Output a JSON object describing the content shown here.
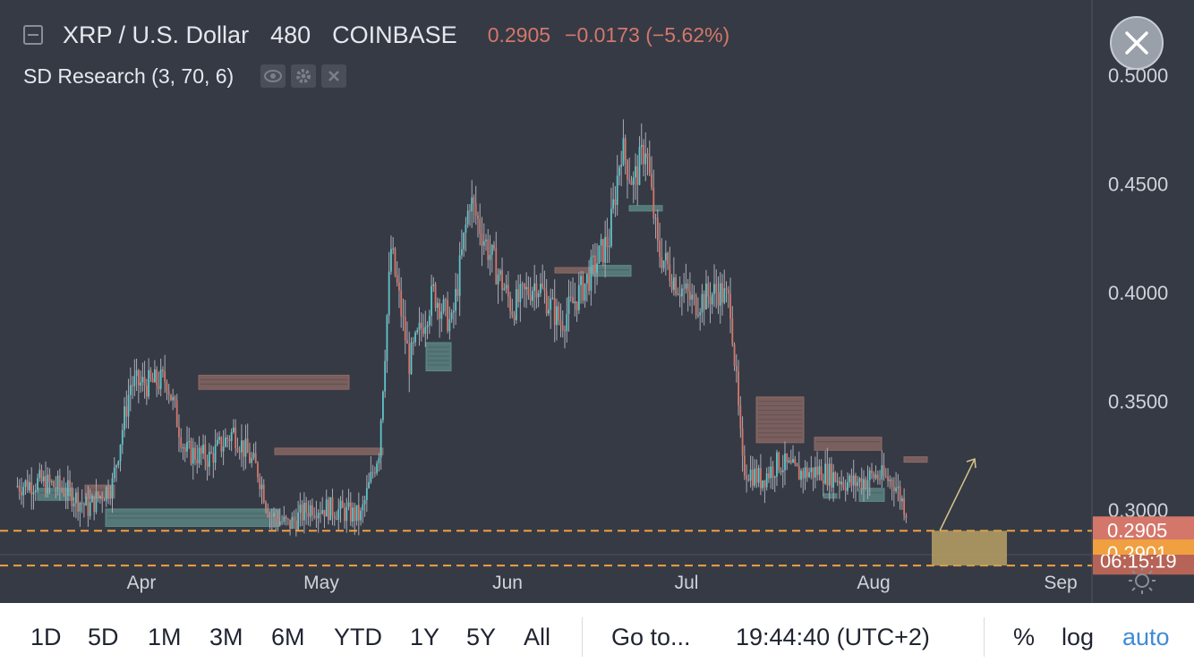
{
  "header": {
    "symbol": "XRP / U.S. Dollar",
    "interval": "480",
    "exchange": "COINBASE",
    "last_price": "0.2905",
    "change": "−0.0173 (−5.62%)",
    "indicator": "SD Research (3, 70, 6)",
    "indicator_icons": [
      "eye-icon",
      "gear-icon",
      "close-icon"
    ]
  },
  "price_axis": {
    "ticks": [
      "0.5000",
      "0.4500",
      "0.4000",
      "0.3500",
      "0.3000"
    ],
    "last_price_label": "0.2905",
    "countdown_label": "06:15:19",
    "low_label": "0.2901"
  },
  "time_axis": {
    "ticks": [
      "Apr",
      "May",
      "Jun",
      "Jul",
      "Aug",
      "Sep"
    ]
  },
  "toolbar": {
    "ranges": [
      "1D",
      "5D",
      "1M",
      "3M",
      "6M",
      "YTD",
      "1Y",
      "5Y",
      "All"
    ],
    "goto": "Go to...",
    "clock": "19:44:40 (UTC+2)",
    "percent": "%",
    "log": "log",
    "auto": "auto"
  },
  "colors": {
    "background": "#363a45",
    "up": "#5ec5c9",
    "down": "#d4776a",
    "supply_zone": "#8c6a64",
    "demand_zone": "#5d8a86",
    "price_line": "#f0a040",
    "accent_blue": "#3f8ad8",
    "target_box": "#b7a164"
  },
  "chart_data": {
    "type": "candlestick",
    "title": "XRP / U.S. Dollar",
    "interval": "480",
    "exchange": "COINBASE",
    "x_ticks": [
      "Apr",
      "May",
      "Jun",
      "Jul",
      "Aug",
      "Sep"
    ],
    "y_ticks": [
      0.5,
      0.45,
      0.4,
      0.35,
      0.3
    ],
    "ylim": [
      0.2795,
      0.5345
    ],
    "last_price": 0.2905,
    "low_marker": 0.2901,
    "series": [
      {
        "name": "close",
        "points": [
          [
            "2019-03-14",
            0.311
          ],
          [
            "2019-03-18",
            0.313
          ],
          [
            "2019-03-22",
            0.31
          ],
          [
            "2019-03-26",
            0.301
          ],
          [
            "2019-03-30",
            0.312
          ],
          [
            "2019-04-02",
            0.358
          ],
          [
            "2019-04-05",
            0.358
          ],
          [
            "2019-04-08",
            0.36
          ],
          [
            "2019-04-11",
            0.327
          ],
          [
            "2019-04-15",
            0.324
          ],
          [
            "2019-04-19",
            0.336
          ],
          [
            "2019-04-23",
            0.318
          ],
          [
            "2019-04-25",
            0.298
          ],
          [
            "2019-04-28",
            0.293
          ],
          [
            "2019-05-02",
            0.302
          ],
          [
            "2019-05-06",
            0.3
          ],
          [
            "2019-05-10",
            0.297
          ],
          [
            "2019-05-13",
            0.328
          ],
          [
            "2019-05-15",
            0.42
          ],
          [
            "2019-05-18",
            0.368
          ],
          [
            "2019-05-22",
            0.4
          ],
          [
            "2019-05-25",
            0.385
          ],
          [
            "2019-05-28",
            0.443
          ],
          [
            "2019-05-31",
            0.42
          ],
          [
            "2019-06-04",
            0.393
          ],
          [
            "2019-06-08",
            0.405
          ],
          [
            "2019-06-12",
            0.386
          ],
          [
            "2019-06-16",
            0.404
          ],
          [
            "2019-06-20",
            0.425
          ],
          [
            "2019-06-22",
            0.467
          ],
          [
            "2019-06-24",
            0.45
          ],
          [
            "2019-06-26",
            0.468
          ],
          [
            "2019-06-28",
            0.42
          ],
          [
            "2019-07-01",
            0.405
          ],
          [
            "2019-07-04",
            0.395
          ],
          [
            "2019-07-08",
            0.401
          ],
          [
            "2019-07-10",
            0.395
          ],
          [
            "2019-07-12",
            0.32
          ],
          [
            "2019-07-15",
            0.314
          ],
          [
            "2019-07-18",
            0.322
          ],
          [
            "2019-07-21",
            0.317
          ],
          [
            "2019-07-25",
            0.318
          ],
          [
            "2019-07-30",
            0.312
          ],
          [
            "2019-08-03",
            0.316
          ],
          [
            "2019-08-06",
            0.313
          ],
          [
            "2019-08-08",
            0.3
          ]
        ]
      }
    ],
    "zones": [
      {
        "kind": "demand",
        "low": 0.3045,
        "high": 0.31
      },
      {
        "kind": "supply",
        "low": 0.3055,
        "high": 0.3115
      },
      {
        "kind": "demand",
        "low": 0.2925,
        "high": 0.3005
      },
      {
        "kind": "supply",
        "low": 0.3555,
        "high": 0.362
      },
      {
        "kind": "supply",
        "low": 0.3255,
        "high": 0.3285
      },
      {
        "kind": "demand",
        "low": 0.364,
        "high": 0.377
      },
      {
        "kind": "supply",
        "low": 0.409,
        "high": 0.4115
      },
      {
        "kind": "demand",
        "low": 0.4075,
        "high": 0.4125
      },
      {
        "kind": "demand",
        "low": 0.4375,
        "high": 0.44
      },
      {
        "kind": "supply",
        "low": 0.331,
        "high": 0.352
      },
      {
        "kind": "supply",
        "low": 0.3275,
        "high": 0.3335
      },
      {
        "kind": "demand",
        "low": 0.3055,
        "high": 0.3075
      },
      {
        "kind": "demand",
        "low": 0.304,
        "high": 0.31
      },
      {
        "kind": "supply",
        "low": 0.322,
        "high": 0.3245
      }
    ],
    "horizontal_lines": [
      0.2905,
      0.2745
    ],
    "target_box": {
      "low": 0.2745,
      "high": 0.2905
    },
    "projection_arrow": {
      "from": 0.2905,
      "to": 0.3235
    }
  }
}
